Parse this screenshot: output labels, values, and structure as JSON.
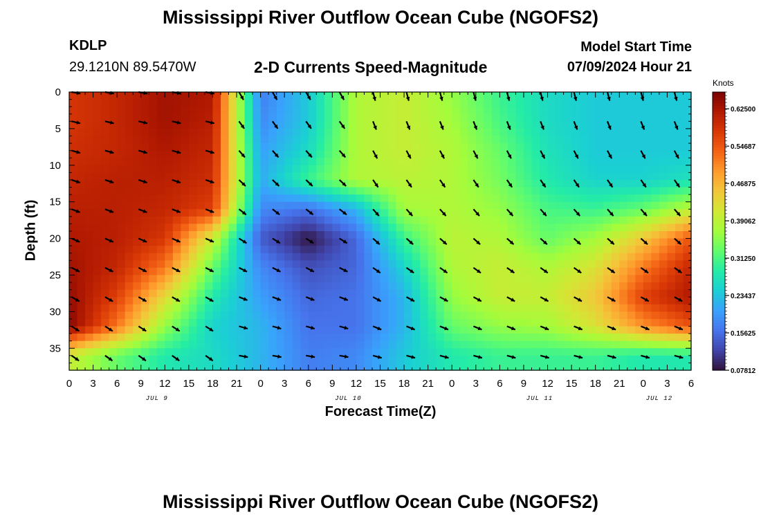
{
  "titles": {
    "main": "Mississippi River Outflow Ocean Cube (NGOFS2)",
    "repeat": "Mississippi River Outflow Ocean Cube (NGOFS2)"
  },
  "station": {
    "id": "KDLP",
    "coords": "29.1210N  89.5470W"
  },
  "subtitle": "2-D Currents Speed-Magnitude",
  "model_start": {
    "label": "Model Start Time",
    "value": "07/09/2024 Hour 21"
  },
  "chart_data": {
    "type": "heatmap",
    "title": "2-D Currents Speed-Magnitude",
    "xlabel": "Forecast Time(Z)",
    "ylabel": "Depth (ft)",
    "units": "Knots",
    "x_ticks": [
      "0",
      "3",
      "6",
      "9",
      "12",
      "15",
      "18",
      "21",
      "0",
      "3",
      "6",
      "9",
      "12",
      "15",
      "18",
      "21",
      "0",
      "3",
      "6",
      "9",
      "12",
      "15",
      "18",
      "21",
      "0",
      "3",
      "6"
    ],
    "date_labels": [
      {
        "label": "JUL 9",
        "hour_index": 11
      },
      {
        "label": "JUL 10",
        "hour_index": 35
      },
      {
        "label": "JUL 11",
        "hour_index": 59
      },
      {
        "label": "JUL 12",
        "hour_index": 74
      }
    ],
    "y_ticks": [
      "0",
      "5",
      "10",
      "15",
      "20",
      "25",
      "30",
      "35"
    ],
    "ylim": [
      0,
      38
    ],
    "x_range_hours": [
      0,
      78
    ],
    "colorbar": {
      "ticks": [
        "0.62500",
        "0.54687",
        "0.46875",
        "0.39062",
        "0.31250",
        "0.23437",
        "0.15625",
        "0.07812"
      ],
      "range": [
        0.07812,
        0.66
      ],
      "colors": [
        "#30123b",
        "#4145ab",
        "#4675ed",
        "#39a2fc",
        "#1bcfd4",
        "#24eca6",
        "#61fc6c",
        "#a4fc3b",
        "#d1e834",
        "#f3c63a",
        "#fe9b2d",
        "#f36315",
        "#d93806",
        "#b11901",
        "#7a0403"
      ]
    },
    "series": [
      {
        "name": "speed",
        "depths": [
          0,
          4,
          8,
          12,
          16,
          20,
          24,
          28,
          32,
          36
        ],
        "hours": [
          0,
          6,
          12,
          18,
          24,
          30,
          36,
          42,
          48,
          54,
          60,
          66,
          72,
          78
        ],
        "values": [
          [
            0.58,
            0.6,
            0.63,
            0.62,
            0.17,
            0.24,
            0.38,
            0.4,
            0.36,
            0.3,
            0.26,
            0.24,
            0.24,
            0.24
          ],
          [
            0.58,
            0.6,
            0.63,
            0.61,
            0.18,
            0.24,
            0.38,
            0.4,
            0.37,
            0.31,
            0.26,
            0.24,
            0.24,
            0.24
          ],
          [
            0.59,
            0.6,
            0.62,
            0.6,
            0.2,
            0.26,
            0.38,
            0.4,
            0.38,
            0.33,
            0.27,
            0.24,
            0.24,
            0.24
          ],
          [
            0.6,
            0.61,
            0.61,
            0.59,
            0.21,
            0.3,
            0.38,
            0.39,
            0.38,
            0.34,
            0.28,
            0.25,
            0.25,
            0.27
          ],
          [
            0.61,
            0.61,
            0.6,
            0.57,
            0.18,
            0.16,
            0.22,
            0.37,
            0.38,
            0.36,
            0.31,
            0.3,
            0.33,
            0.39
          ],
          [
            0.62,
            0.61,
            0.58,
            0.4,
            0.14,
            0.08,
            0.15,
            0.3,
            0.39,
            0.38,
            0.33,
            0.37,
            0.45,
            0.55
          ],
          [
            0.63,
            0.6,
            0.52,
            0.33,
            0.18,
            0.13,
            0.15,
            0.25,
            0.38,
            0.4,
            0.38,
            0.42,
            0.52,
            0.6
          ],
          [
            0.64,
            0.57,
            0.43,
            0.28,
            0.2,
            0.15,
            0.16,
            0.22,
            0.36,
            0.4,
            0.4,
            0.45,
            0.57,
            0.62
          ],
          [
            0.65,
            0.52,
            0.36,
            0.25,
            0.22,
            0.16,
            0.16,
            0.22,
            0.33,
            0.36,
            0.37,
            0.42,
            0.5,
            0.55
          ],
          [
            0.4,
            0.33,
            0.28,
            0.26,
            0.22,
            0.17,
            0.18,
            0.24,
            0.28,
            0.3,
            0.3,
            0.3,
            0.28,
            0.28
          ]
        ]
      }
    ]
  }
}
